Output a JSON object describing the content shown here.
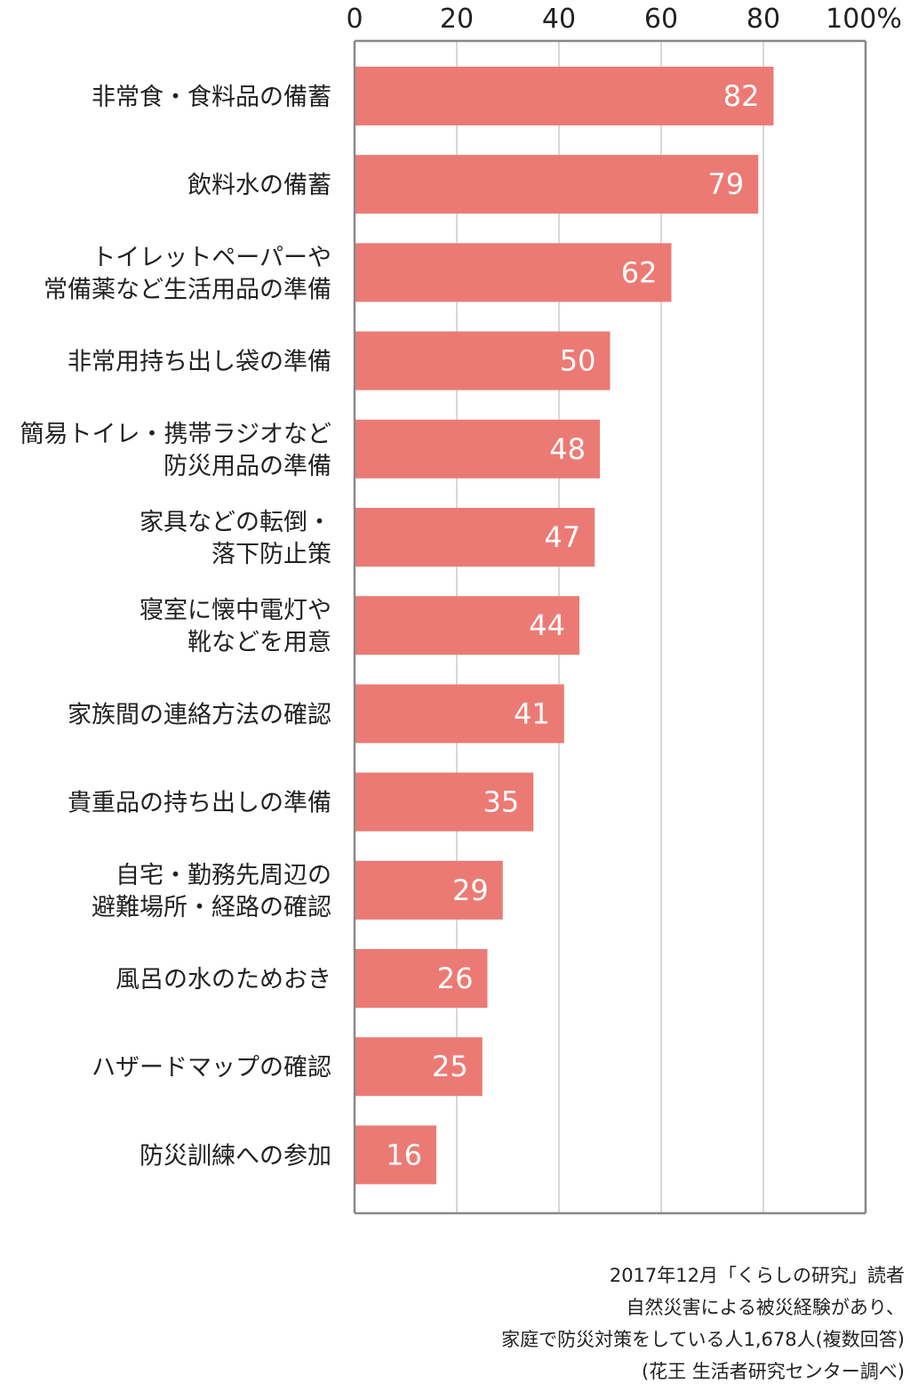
{
  "chart_data": {
    "type": "bar",
    "orientation": "horizontal",
    "categories": [
      [
        "非常食・食料品の備蓄"
      ],
      [
        "飲料水の備蓄"
      ],
      [
        "トイレットペーパーや",
        "常備薬など生活用品の準備"
      ],
      [
        "非常用持ち出し袋の準備"
      ],
      [
        "簡易トイレ・携帯ラジオなど",
        "防災用品の準備"
      ],
      [
        "家具などの転倒・",
        "落下防止策"
      ],
      [
        "寝室に懐中電灯や",
        "靴などを用意"
      ],
      [
        "家族間の連絡方法の確認"
      ],
      [
        "貴重品の持ち出しの準備"
      ],
      [
        "自宅・勤務先周辺の",
        "避難場所・経路の確認"
      ],
      [
        "風呂の水のためおき"
      ],
      [
        "ハザードマップの確認"
      ],
      [
        "防災訓練への参加"
      ]
    ],
    "values": [
      82,
      79,
      62,
      50,
      48,
      47,
      44,
      41,
      35,
      29,
      26,
      25,
      16
    ],
    "xlim": [
      0,
      100
    ],
    "x_ticks": [
      "0",
      "20",
      "40",
      "60",
      "80",
      "100%"
    ],
    "x_tick_values": [
      0,
      20,
      40,
      60,
      80,
      100
    ],
    "grid": true,
    "bar_color": "#ec7a74",
    "grid_color": "#cccccc",
    "axis_color": "#888888",
    "value_label_color": "#ffffff"
  },
  "footnote": [
    "2017年12月「くらしの研究」読者",
    "自然災害による被災経験があり、",
    "家庭で防災対策をしている人1,678人(複数回答)",
    "(花王 生活者研究センター調べ)"
  ]
}
